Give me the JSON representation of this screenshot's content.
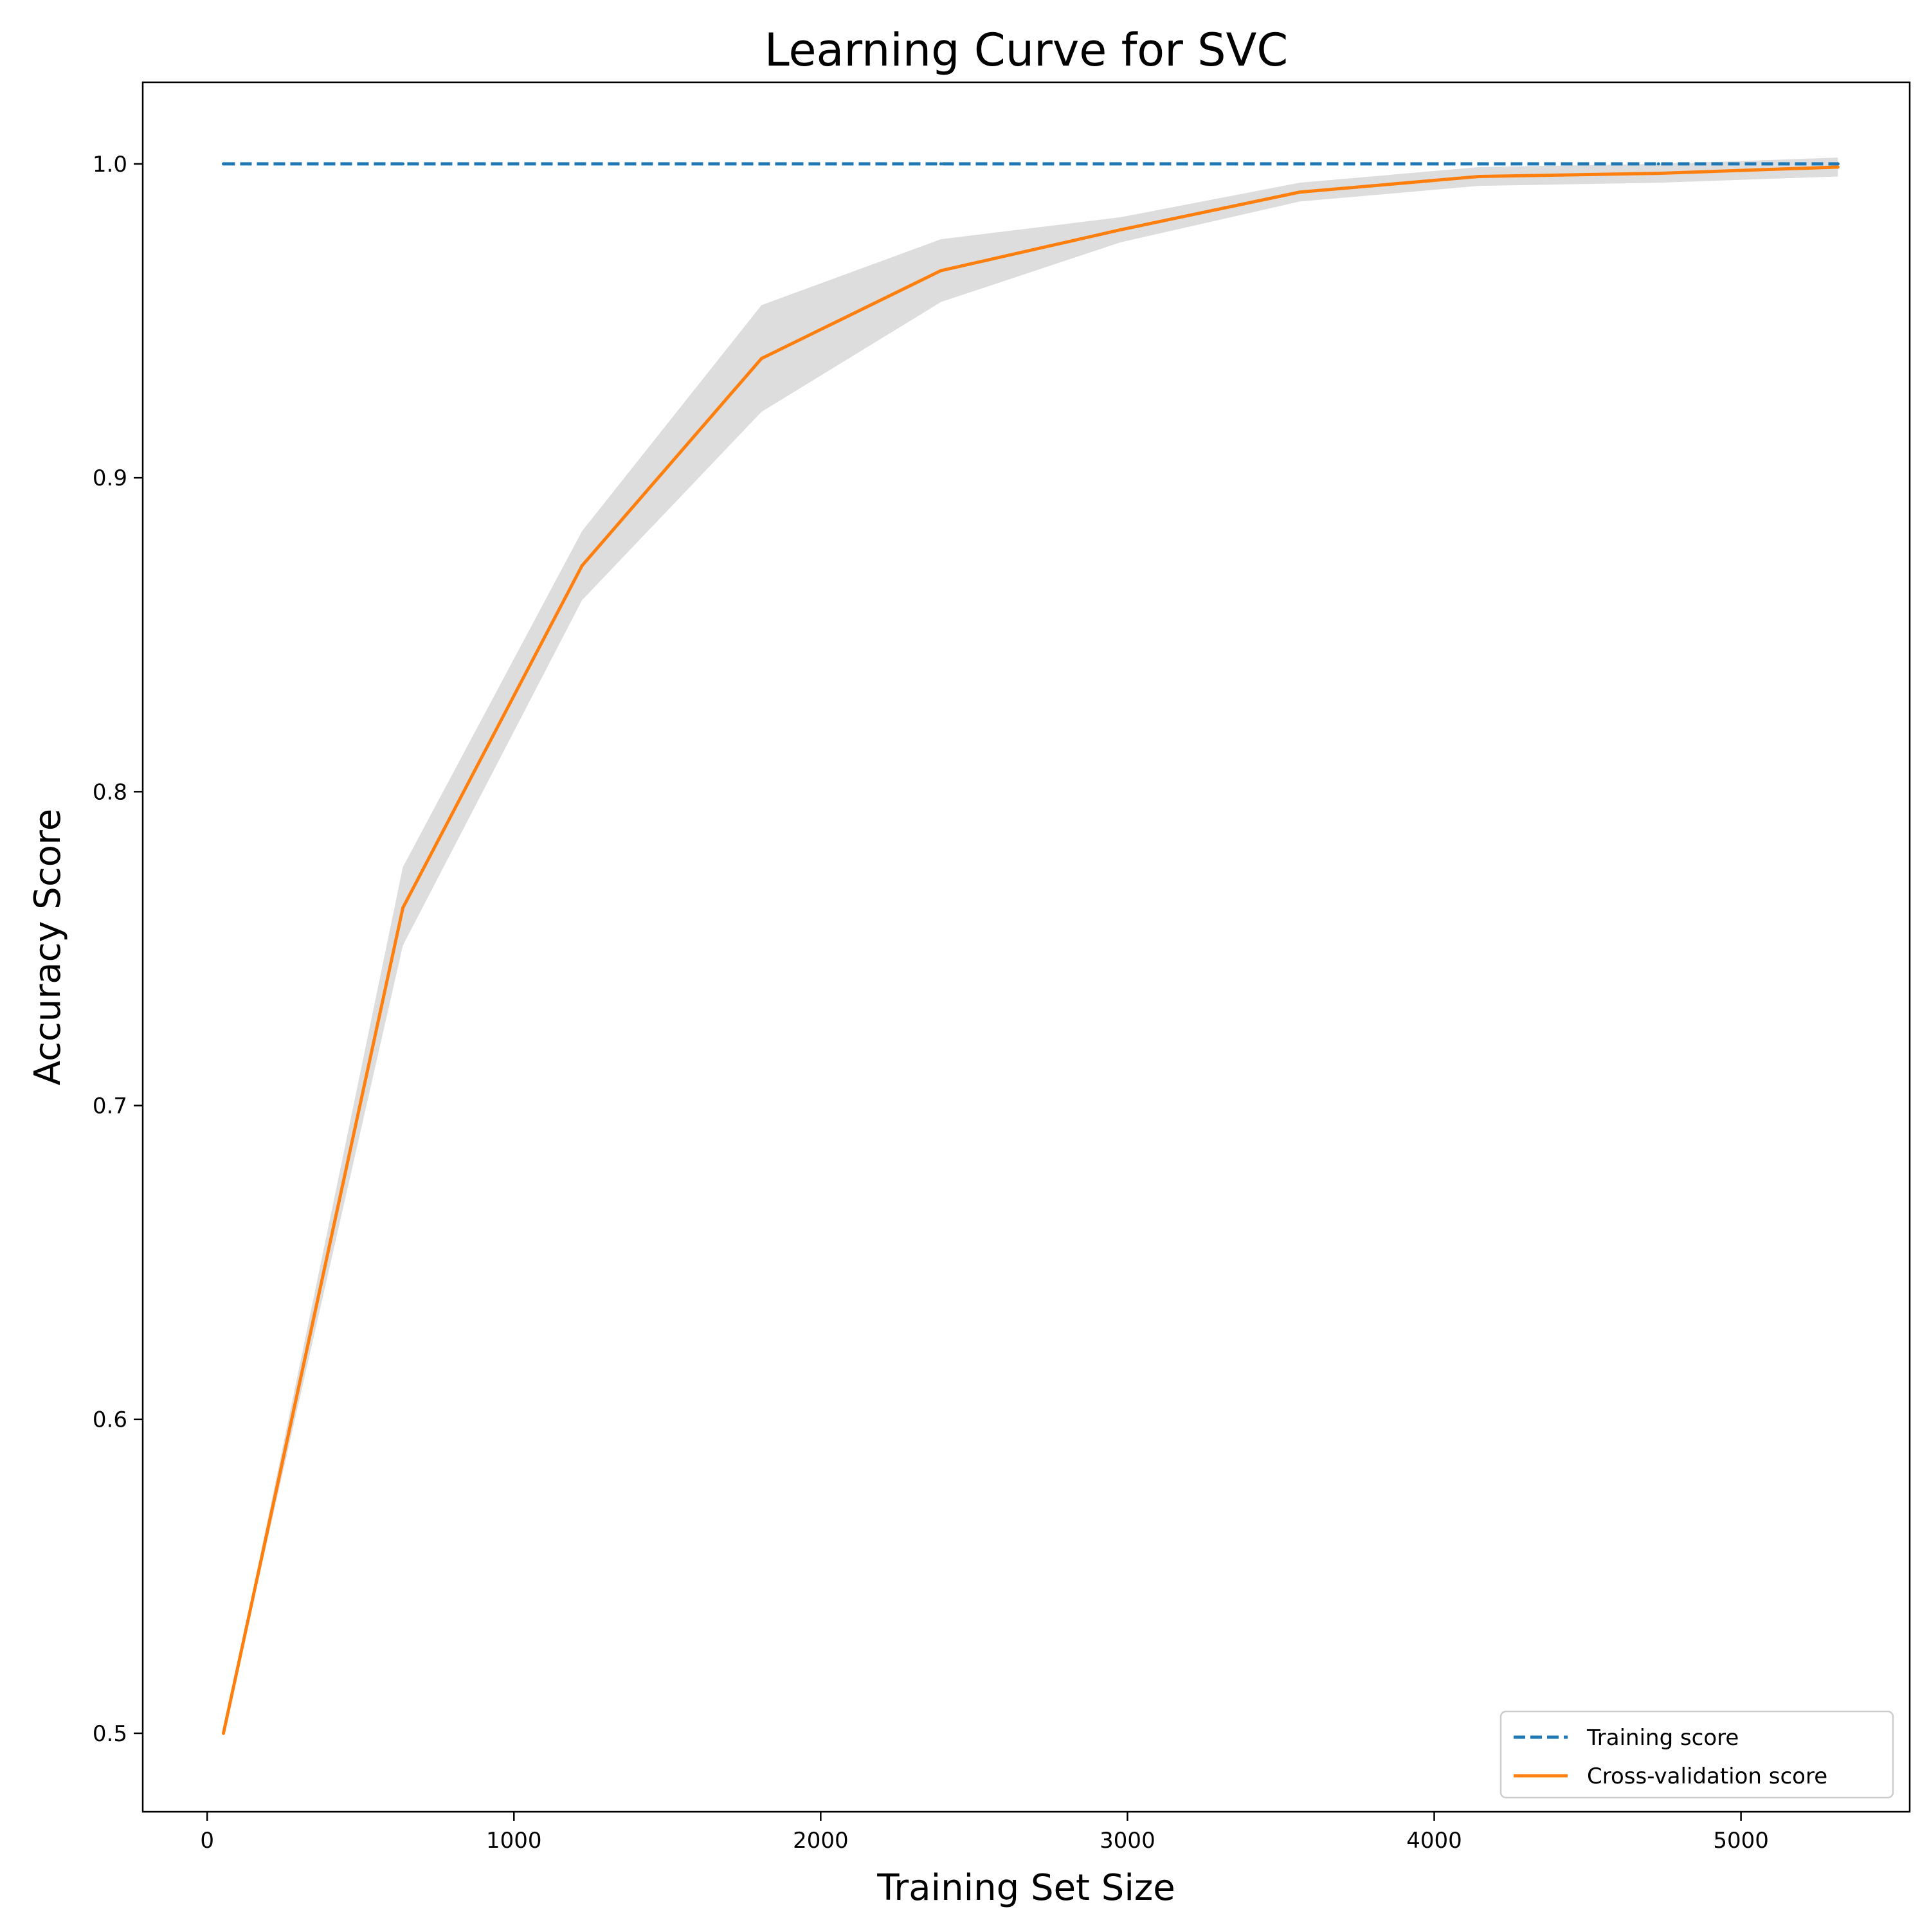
{
  "chart_data": {
    "type": "line",
    "title": "Learning Curve for SVC",
    "xlabel": "Training Set Size",
    "ylabel": "Accuracy Score",
    "xlim": [
      -210,
      5550
    ],
    "ylim": [
      0.475,
      1.026
    ],
    "xticks": [
      0,
      1000,
      2000,
      3000,
      4000,
      5000
    ],
    "xtick_labels": [
      "0",
      "1000",
      "2000",
      "3000",
      "4000",
      "5000"
    ],
    "yticks": [
      0.5,
      0.6,
      0.7,
      0.8,
      0.9,
      1.0
    ],
    "ytick_labels": [
      "0.5",
      "0.6",
      "0.7",
      "0.8",
      "0.9",
      "1.0"
    ],
    "grid": false,
    "legend_position": "bottom-right",
    "x": [
      53,
      638,
      1222,
      1807,
      2392,
      2977,
      3561,
      4146,
      4731,
      5316
    ],
    "series": [
      {
        "name": "Training score",
        "style": "dashed",
        "color": "#1f77b4",
        "values": [
          1.0,
          1.0,
          1.0,
          1.0,
          1.0,
          1.0,
          1.0,
          1.0,
          1.0,
          1.0
        ]
      },
      {
        "name": "Cross-validation score",
        "style": "solid",
        "color": "#ff7f0e",
        "values": [
          0.5,
          0.763,
          0.872,
          0.938,
          0.966,
          0.979,
          0.991,
          0.996,
          0.997,
          0.999
        ],
        "band_lower": [
          0.5,
          0.751,
          0.861,
          0.921,
          0.956,
          0.975,
          0.988,
          0.993,
          0.994,
          0.996
        ],
        "band_upper": [
          0.5,
          0.776,
          0.883,
          0.955,
          0.976,
          0.983,
          0.994,
          0.999,
          1.0,
          1.002
        ],
        "band_color": "#dddddd"
      }
    ]
  }
}
